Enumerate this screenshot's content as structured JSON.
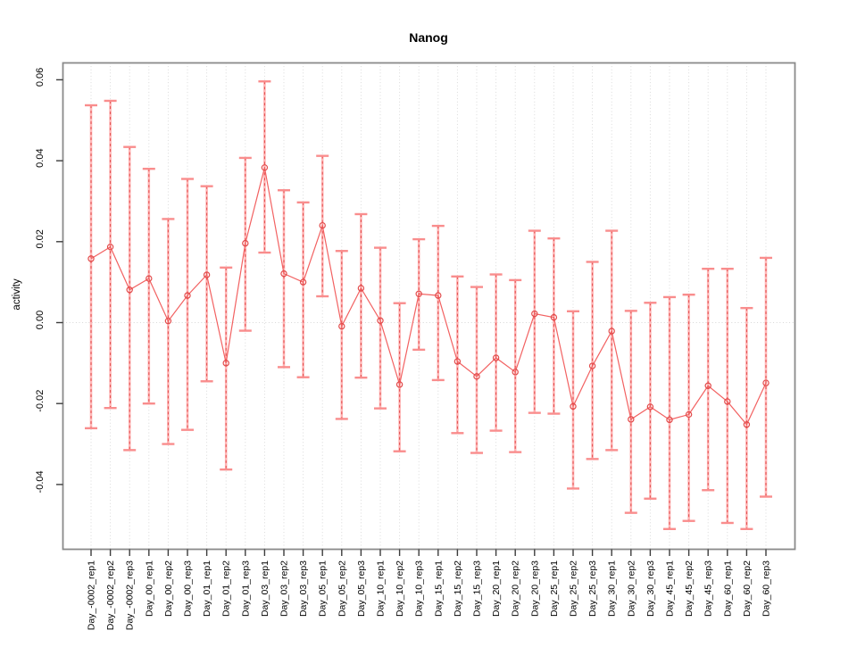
{
  "title": "Nanog",
  "chart_data": {
    "type": "line",
    "title": "Nanog",
    "xlabel": "",
    "ylabel": "activity",
    "legend": "none",
    "grid": "vertical dotted gridline at every category; horizontal dotted line at y=0",
    "ylim": [
      -0.056,
      0.064
    ],
    "ytick_labels": [
      "0.06",
      "0.04",
      "0.02",
      "0.00",
      "-0.02",
      "-0.04"
    ],
    "ytick_values": [
      0.06,
      0.04,
      0.02,
      0.0,
      -0.02,
      -0.04
    ],
    "categories": [
      "Day_-0002_rep1",
      "Day_-0002_rep2",
      "Day_-0002_rep3",
      "Day_00_rep1",
      "Day_00_rep2",
      "Day_00_rep3",
      "Day_01_rep1",
      "Day_01_rep2",
      "Day_01_rep3",
      "Day_03_rep1",
      "Day_03_rep2",
      "Day_03_rep3",
      "Day_05_rep1",
      "Day_05_rep2",
      "Day_05_rep3",
      "Day_10_rep1",
      "Day_10_rep2",
      "Day_10_rep3",
      "Day_15_rep1",
      "Day_15_rep2",
      "Day_15_rep3",
      "Day_20_rep1",
      "Day_20_rep2",
      "Day_20_rep3",
      "Day_25_rep1",
      "Day_25_rep2",
      "Day_25_rep3",
      "Day_30_rep1",
      "Day_30_rep2",
      "Day_30_rep3",
      "Day_45_rep1",
      "Day_45_rep2",
      "Day_45_rep3",
      "Day_60_rep1",
      "Day_60_rep2",
      "Day_60_rep3"
    ],
    "series": [
      {
        "name": "activity",
        "marker": "open-circle",
        "values": [
          0.0158,
          0.0187,
          0.0081,
          0.0109,
          0.0004,
          0.0067,
          0.0118,
          -0.01,
          0.0196,
          0.0383,
          0.0121,
          0.01,
          0.024,
          -0.0009,
          0.0085,
          0.0005,
          -0.0153,
          0.0071,
          0.0067,
          -0.0096,
          -0.0133,
          -0.0087,
          -0.0122,
          0.0022,
          0.0013,
          -0.0207,
          -0.0107,
          -0.0021,
          -0.0239,
          -0.0208,
          -0.024,
          -0.0227,
          -0.0156,
          -0.0195,
          -0.0252,
          -0.0149
        ],
        "error_high": [
          0.0537,
          0.0548,
          0.0434,
          0.038,
          0.0256,
          0.0355,
          0.0337,
          0.0136,
          0.0407,
          0.0596,
          0.0327,
          0.0297,
          0.0412,
          0.0177,
          0.0268,
          0.0185,
          0.0048,
          0.0206,
          0.0239,
          0.0114,
          0.0088,
          0.0119,
          0.0105,
          0.0227,
          0.0208,
          0.0028,
          0.015,
          0.0227,
          0.0029,
          0.0049,
          0.0063,
          0.0069,
          0.0133,
          0.0133,
          0.0036,
          0.016
        ],
        "error_low": [
          -0.0261,
          -0.0211,
          -0.0315,
          -0.02,
          -0.03,
          -0.0265,
          -0.0145,
          -0.0363,
          -0.002,
          0.0173,
          -0.011,
          -0.0135,
          0.0065,
          -0.0238,
          -0.0136,
          -0.0212,
          -0.0318,
          -0.0067,
          -0.0142,
          -0.0273,
          -0.0322,
          -0.0267,
          -0.032,
          -0.0223,
          -0.0225,
          -0.041,
          -0.0337,
          -0.0315,
          -0.047,
          -0.0435,
          -0.051,
          -0.049,
          -0.0414,
          -0.0495,
          -0.051,
          -0.043
        ]
      }
    ],
    "colors": {
      "error_band": "#ffb5b5",
      "error_dash": "#e24b4b",
      "error_cap": "#f98d8d",
      "series_line": "#f26161",
      "marker_stroke": "#e24b4b",
      "gridline": "#d6d6d6",
      "plot_border": "#8a8a8a",
      "tick": "#3c3c3c",
      "text": "#000000"
    }
  }
}
